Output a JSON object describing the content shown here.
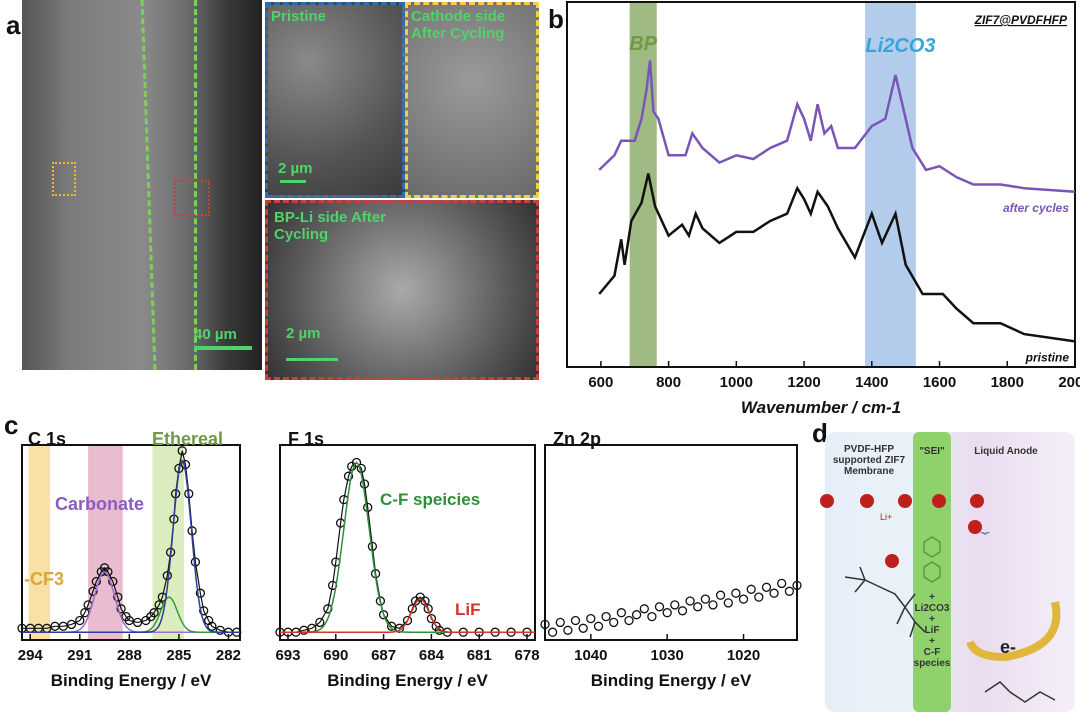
{
  "panel_labels": {
    "a": "a",
    "b": "b",
    "c": "c",
    "d": "d"
  },
  "panel_a": {
    "scale_main": "40 µm",
    "insets": [
      {
        "title": "Pristine",
        "scale": "2 µm",
        "border": "#2f6db3"
      },
      {
        "title": "Cathode side After Cycling",
        "border": "#f2cf47"
      },
      {
        "title": "BP-Li side After Cycling",
        "scale": "2 µm",
        "border": "#c9403a"
      }
    ]
  },
  "chart_data": [
    {
      "id": "raman",
      "type": "line",
      "title": "ZIF7@PVDFHFP",
      "xlabel": "Wavenumber / cm-1",
      "xlim": [
        500,
        2000
      ],
      "x_reversed": false,
      "xticks": [
        600,
        800,
        1000,
        1200,
        1400,
        1600,
        1800,
        2000
      ],
      "ylim": [
        0,
        100
      ],
      "grid": false,
      "bands": [
        {
          "label": "BP",
          "range": [
            685,
            765
          ],
          "color": "#7fa35a"
        },
        {
          "label": "Li2CO3",
          "range": [
            1380,
            1530
          ],
          "color": "#9bbbe6"
        }
      ],
      "series": [
        {
          "name": "after cycles",
          "color": "#7a55b8",
          "points": [
            [
              595,
              54
            ],
            [
              640,
              58
            ],
            [
              660,
              62
            ],
            [
              700,
              62
            ],
            [
              720,
              68
            ],
            [
              735,
              76
            ],
            [
              745,
              84
            ],
            [
              755,
              70
            ],
            [
              770,
              68
            ],
            [
              800,
              58
            ],
            [
              850,
              58
            ],
            [
              870,
              64
            ],
            [
              885,
              62
            ],
            [
              900,
              60
            ],
            [
              950,
              56
            ],
            [
              1000,
              58
            ],
            [
              1050,
              57
            ],
            [
              1100,
              60
            ],
            [
              1150,
              62
            ],
            [
              1180,
              72
            ],
            [
              1200,
              68
            ],
            [
              1220,
              62
            ],
            [
              1240,
              72
            ],
            [
              1260,
              64
            ],
            [
              1280,
              66
            ],
            [
              1300,
              60
            ],
            [
              1350,
              60
            ],
            [
              1400,
              66
            ],
            [
              1440,
              68
            ],
            [
              1470,
              80
            ],
            [
              1490,
              72
            ],
            [
              1520,
              60
            ],
            [
              1560,
              54
            ],
            [
              1600,
              55
            ],
            [
              1650,
              52
            ],
            [
              1700,
              50
            ],
            [
              1780,
              50
            ],
            [
              1850,
              49
            ],
            [
              2000,
              48
            ]
          ]
        },
        {
          "name": "pristine",
          "color": "#111111",
          "points": [
            [
              595,
              20
            ],
            [
              640,
              25
            ],
            [
              660,
              35
            ],
            [
              670,
              28
            ],
            [
              690,
              40
            ],
            [
              720,
              45
            ],
            [
              740,
              53
            ],
            [
              760,
              44
            ],
            [
              800,
              36
            ],
            [
              840,
              39
            ],
            [
              860,
              36
            ],
            [
              880,
              42
            ],
            [
              900,
              38
            ],
            [
              950,
              34
            ],
            [
              1000,
              37
            ],
            [
              1050,
              37
            ],
            [
              1100,
              40
            ],
            [
              1150,
              42
            ],
            [
              1180,
              49
            ],
            [
              1200,
              46
            ],
            [
              1220,
              42
            ],
            [
              1240,
              48
            ],
            [
              1270,
              44
            ],
            [
              1300,
              38
            ],
            [
              1350,
              30
            ],
            [
              1400,
              42
            ],
            [
              1430,
              34
            ],
            [
              1470,
              42
            ],
            [
              1500,
              28
            ],
            [
              1550,
              20
            ],
            [
              1610,
              20
            ],
            [
              1650,
              16
            ],
            [
              1700,
              12
            ],
            [
              1780,
              12
            ],
            [
              1850,
              9
            ],
            [
              2000,
              7
            ]
          ]
        }
      ]
    },
    {
      "id": "c1s",
      "type": "scatter",
      "title": "C 1s",
      "xlabel": "Binding Energy / eV",
      "xlim": [
        294.5,
        281.3
      ],
      "x_reversed": true,
      "xticks": [
        294,
        291,
        288,
        285,
        282
      ],
      "ylim": [
        0,
        100
      ],
      "bands": [
        {
          "label": "-CF3",
          "range": [
            294.1,
            292.8
          ],
          "color": "#f7d68a"
        },
        {
          "label": "Carbonate",
          "range": [
            290.5,
            288.4
          ],
          "color": "#e3a6c0"
        },
        {
          "label": "Ethereal",
          "range": [
            286.6,
            284.7
          ],
          "color": "#cfe6a8"
        }
      ],
      "series": [
        {
          "name": "data",
          "color": "#111111",
          "points": [
            [
              294.5,
              6
            ],
            [
              294,
              6
            ],
            [
              293.5,
              6
            ],
            [
              293,
              6
            ],
            [
              292.5,
              7
            ],
            [
              292,
              7
            ],
            [
              291.5,
              8
            ],
            [
              291,
              10
            ],
            [
              290.7,
              14
            ],
            [
              290.5,
              18
            ],
            [
              290.2,
              25
            ],
            [
              290,
              30
            ],
            [
              289.7,
              35
            ],
            [
              289.5,
              37
            ],
            [
              289.3,
              35
            ],
            [
              289,
              30
            ],
            [
              288.7,
              22
            ],
            [
              288.5,
              16
            ],
            [
              288.2,
              12
            ],
            [
              288,
              10
            ],
            [
              287.5,
              9
            ],
            [
              287,
              10
            ],
            [
              286.7,
              12
            ],
            [
              286.5,
              14
            ],
            [
              286.2,
              18
            ],
            [
              286,
              22
            ],
            [
              285.7,
              33
            ],
            [
              285.5,
              45
            ],
            [
              285.3,
              62
            ],
            [
              285.2,
              75
            ],
            [
              285,
              88
            ],
            [
              284.8,
              97
            ],
            [
              284.6,
              90
            ],
            [
              284.4,
              75
            ],
            [
              284.2,
              56
            ],
            [
              284,
              40
            ],
            [
              283.7,
              24
            ],
            [
              283.5,
              15
            ],
            [
              283.2,
              10
            ],
            [
              283,
              7
            ],
            [
              282.5,
              5
            ],
            [
              282,
              4
            ],
            [
              281.5,
              4
            ]
          ]
        },
        {
          "name": "carbonate fit",
          "color": "#9b6fd0",
          "gauss": {
            "center": 289.5,
            "height": 31,
            "width": 0.6
          }
        },
        {
          "name": "ethereal fit",
          "color": "#3a9a3a",
          "gauss": {
            "center": 285.6,
            "height": 18,
            "width": 0.5
          }
        },
        {
          "name": "C-C fit",
          "color": "#2d3e9a",
          "gauss": {
            "center": 284.8,
            "height": 88,
            "width": 0.55
          }
        }
      ]
    },
    {
      "id": "f1s",
      "type": "scatter",
      "title": "F 1s",
      "xlabel": "Binding Energy / eV",
      "xlim": [
        693.5,
        677.5
      ],
      "x_reversed": true,
      "xticks": [
        693,
        690,
        687,
        684,
        681,
        678
      ],
      "ylim": [
        0,
        100
      ],
      "annotations": [
        {
          "text": "C-F speicies",
          "color": "#2f8f3a"
        },
        {
          "text": "LiF",
          "color": "#d6332b"
        }
      ],
      "series": [
        {
          "name": "data",
          "color": "#111111",
          "points": [
            [
              693.5,
              4
            ],
            [
              693,
              4
            ],
            [
              692.5,
              4
            ],
            [
              692,
              5
            ],
            [
              691.5,
              6
            ],
            [
              691,
              9
            ],
            [
              690.5,
              16
            ],
            [
              690.2,
              28
            ],
            [
              690,
              40
            ],
            [
              689.7,
              60
            ],
            [
              689.5,
              72
            ],
            [
              689.2,
              84
            ],
            [
              689,
              89
            ],
            [
              688.7,
              91
            ],
            [
              688.4,
              88
            ],
            [
              688.2,
              80
            ],
            [
              688,
              68
            ],
            [
              687.7,
              48
            ],
            [
              687.5,
              34
            ],
            [
              687.2,
              20
            ],
            [
              687,
              13
            ],
            [
              686.5,
              7
            ],
            [
              686,
              6
            ],
            [
              685.5,
              10
            ],
            [
              685.2,
              16
            ],
            [
              685,
              20
            ],
            [
              684.7,
              22
            ],
            [
              684.4,
              20
            ],
            [
              684.2,
              16
            ],
            [
              684,
              11
            ],
            [
              683.7,
              7
            ],
            [
              683.5,
              5
            ],
            [
              683,
              4
            ],
            [
              682,
              4
            ],
            [
              681,
              4
            ],
            [
              680,
              4
            ],
            [
              679,
              4
            ],
            [
              678,
              4
            ]
          ]
        },
        {
          "name": "C-F fit",
          "color": "#2f8f3a",
          "gauss": {
            "center": 688.7,
            "height": 87,
            "width": 0.8
          }
        },
        {
          "name": "LiF fit",
          "color": "#d6332b",
          "gauss": {
            "center": 684.7,
            "height": 17,
            "width": 0.55
          }
        }
      ]
    },
    {
      "id": "zn2p",
      "type": "scatter",
      "title": "Zn 2p",
      "xlabel": "Binding Energy / eV",
      "xlim": [
        1046,
        1013
      ],
      "x_reversed": true,
      "xticks": [
        1040,
        1030,
        1020
      ],
      "ylim": [
        0,
        100
      ],
      "series": [
        {
          "name": "data",
          "color": "#111111",
          "points": [
            [
              1046,
              8
            ],
            [
              1045,
              4
            ],
            [
              1044,
              9
            ],
            [
              1043,
              5
            ],
            [
              1042,
              10
            ],
            [
              1041,
              6
            ],
            [
              1040,
              11
            ],
            [
              1039,
              7
            ],
            [
              1038,
              12
            ],
            [
              1037,
              9
            ],
            [
              1036,
              14
            ],
            [
              1035,
              10
            ],
            [
              1034,
              13
            ],
            [
              1033,
              16
            ],
            [
              1032,
              12
            ],
            [
              1031,
              17
            ],
            [
              1030,
              14
            ],
            [
              1029,
              18
            ],
            [
              1028,
              15
            ],
            [
              1027,
              20
            ],
            [
              1026,
              17
            ],
            [
              1025,
              21
            ],
            [
              1024,
              18
            ],
            [
              1023,
              23
            ],
            [
              1022,
              19
            ],
            [
              1021,
              24
            ],
            [
              1020,
              21
            ],
            [
              1019,
              26
            ],
            [
              1018,
              22
            ],
            [
              1017,
              27
            ],
            [
              1016,
              24
            ],
            [
              1015,
              29
            ],
            [
              1014,
              25
            ],
            [
              1013,
              28
            ]
          ]
        }
      ]
    }
  ],
  "panel_d": {
    "membrane_title": "PVDF-HFP supported ZIF7 Membrane",
    "sei_title": "\"SEI\"",
    "anode_title": "Liquid Anode",
    "li_label": "Li+",
    "electron_label": "e-",
    "sei_components": [
      "+",
      "Li2CO3",
      "+",
      "LiF",
      "+",
      "C-F",
      "species"
    ]
  }
}
